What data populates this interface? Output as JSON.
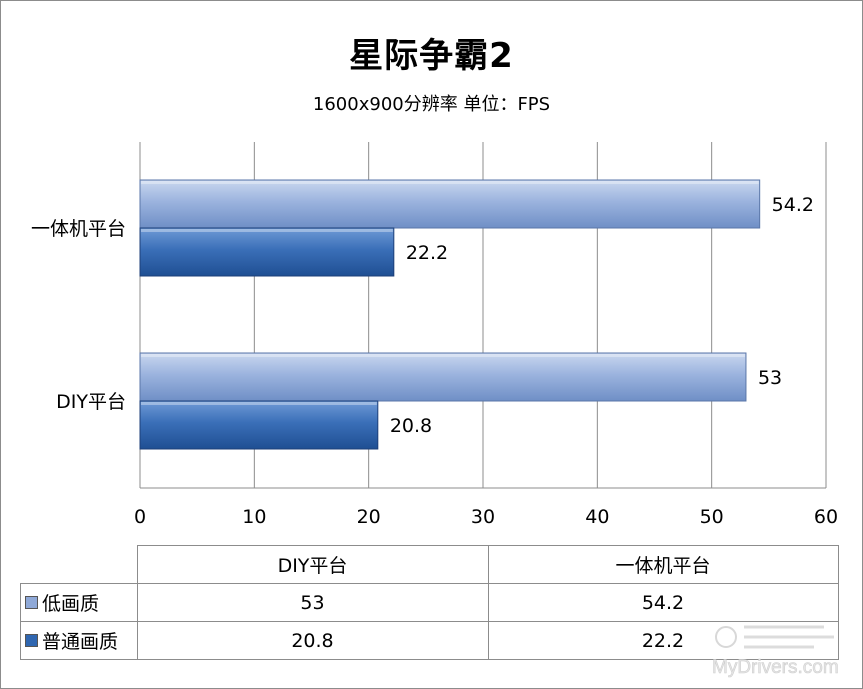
{
  "chart_data": {
    "type": "bar",
    "orientation": "horizontal",
    "title": "星际争霸2",
    "subtitle": "1600x900分辨率  单位：FPS",
    "categories": [
      "一体机平台",
      "DIY平台"
    ],
    "series": [
      {
        "name": "低画质",
        "values": [
          54.2,
          53
        ],
        "color": "#8fa9d8"
      },
      {
        "name": "普通画质",
        "values": [
          22.2,
          20.8
        ],
        "color": "#2f66b0"
      }
    ],
    "xlim": [
      0,
      60
    ],
    "xticks": [
      "0",
      "10",
      "20",
      "30",
      "40",
      "50",
      "60"
    ],
    "grid": true,
    "data_labels": [
      "54.2",
      "22.2",
      "53",
      "20.8"
    ]
  },
  "table": {
    "headers": [
      "DIY平台",
      "一体机平台"
    ],
    "rows": [
      {
        "label": "低画质",
        "values": [
          "53",
          "54.2"
        ]
      },
      {
        "label": "普通画质",
        "values": [
          "20.8",
          "22.2"
        ]
      }
    ]
  },
  "watermark": {
    "text": "MyDrivers.com"
  }
}
